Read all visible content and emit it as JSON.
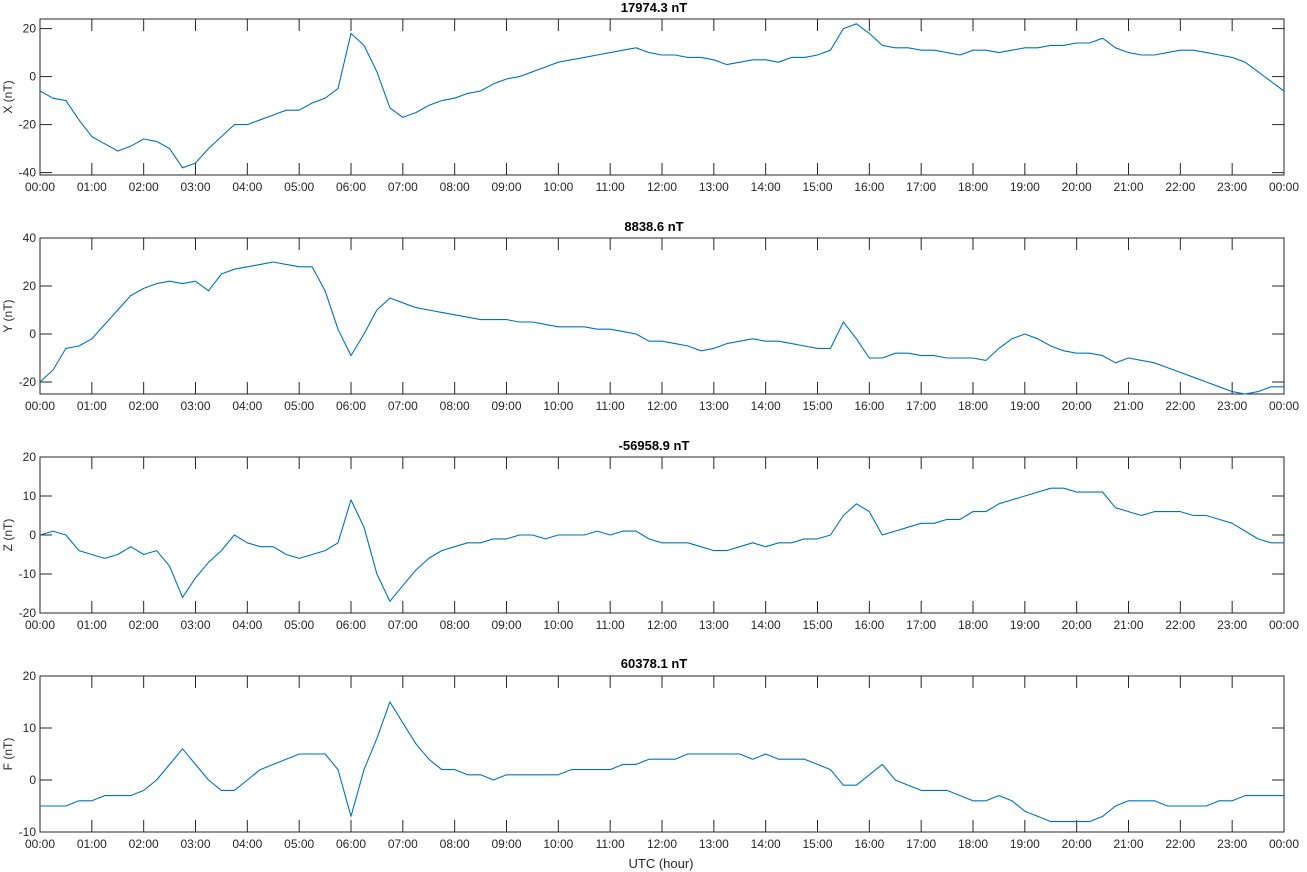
{
  "figure": {
    "xlabel": "UTC (hour)",
    "x_tick_labels": [
      "00:00",
      "01:00",
      "02:00",
      "03:00",
      "04:00",
      "05:00",
      "06:00",
      "07:00",
      "08:00",
      "09:00",
      "10:00",
      "11:00",
      "12:00",
      "13:00",
      "14:00",
      "15:00",
      "16:00",
      "17:00",
      "18:00",
      "19:00",
      "20:00",
      "21:00",
      "22:00",
      "23:00",
      "00:00"
    ],
    "line_color": "#0072BD"
  },
  "chart_data": [
    {
      "type": "line",
      "title": "17974.3 nT",
      "ylabel": "X (nT)",
      "xlim": [
        0,
        24
      ],
      "ylim": [
        -41,
        24
      ],
      "y_ticks": [
        -40,
        -20,
        0,
        20
      ],
      "series": [
        {
          "x": [
            0,
            0.25,
            0.5,
            0.75,
            1,
            1.25,
            1.5,
            1.75,
            2,
            2.25,
            2.5,
            2.75,
            3,
            3.25,
            3.5,
            3.75,
            4,
            4.25,
            4.5,
            4.75,
            5,
            5.25,
            5.5,
            5.75,
            6,
            6.25,
            6.5,
            6.75,
            7,
            7.25,
            7.5,
            7.75,
            8,
            8.25,
            8.5,
            8.75,
            9,
            9.25,
            9.5,
            9.75,
            10,
            10.25,
            10.5,
            10.75,
            11,
            11.25,
            11.5,
            11.75,
            12,
            12.25,
            12.5,
            12.75,
            13,
            13.25,
            13.5,
            13.75,
            14,
            14.25,
            14.5,
            14.75,
            15,
            15.25,
            15.5,
            15.75,
            16,
            16.25,
            16.5,
            16.75,
            17,
            17.25,
            17.5,
            17.75,
            18,
            18.25,
            18.5,
            18.75,
            19,
            19.25,
            19.5,
            19.75,
            20,
            20.25,
            20.5,
            20.75,
            21,
            21.25,
            21.5,
            21.75,
            22,
            22.25,
            22.5,
            22.75,
            23,
            23.25,
            23.5,
            23.75,
            24
          ],
          "values": [
            -6,
            -9,
            -10,
            -18,
            -25,
            -28,
            -31,
            -29,
            -26,
            -27,
            -30,
            -38,
            -36,
            -30,
            -25,
            -20,
            -20,
            -18,
            -16,
            -14,
            -14,
            -11,
            -9,
            -5,
            18,
            13,
            2,
            -13,
            -17,
            -15,
            -12,
            -10,
            -9,
            -7,
            -6,
            -3,
            -1,
            0,
            2,
            4,
            6,
            7,
            8,
            9,
            10,
            11,
            12,
            10,
            9,
            9,
            8,
            8,
            7,
            5,
            6,
            7,
            7,
            6,
            8,
            8,
            9,
            11,
            20,
            22,
            18,
            13,
            12,
            12,
            11,
            11,
            10,
            9,
            11,
            11,
            10,
            11,
            12,
            12,
            13,
            13,
            14,
            14,
            16,
            12,
            10,
            9,
            9,
            10,
            11,
            11,
            10,
            9,
            8,
            6,
            2,
            -2,
            -6
          ]
        }
      ]
    },
    {
      "type": "line",
      "title": "8838.6 nT",
      "ylabel": "Y (nT)",
      "xlim": [
        0,
        24
      ],
      "ylim": [
        -25,
        40
      ],
      "y_ticks": [
        -20,
        0,
        20,
        40
      ],
      "series": [
        {
          "x": [
            0,
            0.25,
            0.5,
            0.75,
            1,
            1.25,
            1.5,
            1.75,
            2,
            2.25,
            2.5,
            2.75,
            3,
            3.25,
            3.5,
            3.75,
            4,
            4.25,
            4.5,
            4.75,
            5,
            5.25,
            5.5,
            5.75,
            6,
            6.25,
            6.5,
            6.75,
            7,
            7.25,
            7.5,
            7.75,
            8,
            8.25,
            8.5,
            8.75,
            9,
            9.25,
            9.5,
            9.75,
            10,
            10.25,
            10.5,
            10.75,
            11,
            11.25,
            11.5,
            11.75,
            12,
            12.25,
            12.5,
            12.75,
            13,
            13.25,
            13.5,
            13.75,
            14,
            14.25,
            14.5,
            14.75,
            15,
            15.25,
            15.5,
            15.75,
            16,
            16.25,
            16.5,
            16.75,
            17,
            17.25,
            17.5,
            17.75,
            18,
            18.25,
            18.5,
            18.75,
            19,
            19.25,
            19.5,
            19.75,
            20,
            20.25,
            20.5,
            20.75,
            21,
            21.25,
            21.5,
            21.75,
            22,
            22.25,
            22.5,
            22.75,
            23,
            23.25,
            23.5,
            23.75,
            24
          ],
          "values": [
            -20,
            -15,
            -6,
            -5,
            -2,
            4,
            10,
            16,
            19,
            21,
            22,
            21,
            22,
            18,
            25,
            27,
            28,
            29,
            30,
            29,
            28,
            28,
            18,
            2,
            -9,
            0,
            10,
            15,
            13,
            11,
            10,
            9,
            8,
            7,
            6,
            6,
            6,
            5,
            5,
            4,
            3,
            3,
            3,
            2,
            2,
            1,
            0,
            -3,
            -3,
            -4,
            -5,
            -7,
            -6,
            -4,
            -3,
            -2,
            -3,
            -3,
            -4,
            -5,
            -6,
            -6,
            5,
            -2,
            -10,
            -10,
            -8,
            -8,
            -9,
            -9,
            -10,
            -10,
            -10,
            -11,
            -6,
            -2,
            0,
            -2,
            -5,
            -7,
            -8,
            -8,
            -9,
            -12,
            -10,
            -11,
            -12,
            -14,
            -16,
            -18,
            -20,
            -22,
            -24,
            -25,
            -24,
            -22,
            -22
          ]
        }
      ]
    },
    {
      "type": "line",
      "title": "-56958.9 nT",
      "ylabel": "Z (nT)",
      "xlim": [
        0,
        24
      ],
      "ylim": [
        -20,
        20
      ],
      "y_ticks": [
        -20,
        -10,
        0,
        10,
        20
      ],
      "series": [
        {
          "x": [
            0,
            0.25,
            0.5,
            0.75,
            1,
            1.25,
            1.5,
            1.75,
            2,
            2.25,
            2.5,
            2.75,
            3,
            3.25,
            3.5,
            3.75,
            4,
            4.25,
            4.5,
            4.75,
            5,
            5.25,
            5.5,
            5.75,
            6,
            6.25,
            6.5,
            6.75,
            7,
            7.25,
            7.5,
            7.75,
            8,
            8.25,
            8.5,
            8.75,
            9,
            9.25,
            9.5,
            9.75,
            10,
            10.25,
            10.5,
            10.75,
            11,
            11.25,
            11.5,
            11.75,
            12,
            12.25,
            12.5,
            12.75,
            13,
            13.25,
            13.5,
            13.75,
            14,
            14.25,
            14.5,
            14.75,
            15,
            15.25,
            15.5,
            15.75,
            16,
            16.25,
            16.5,
            16.75,
            17,
            17.25,
            17.5,
            17.75,
            18,
            18.25,
            18.5,
            18.75,
            19,
            19.25,
            19.5,
            19.75,
            20,
            20.25,
            20.5,
            20.75,
            21,
            21.25,
            21.5,
            21.75,
            22,
            22.25,
            22.5,
            22.75,
            23,
            23.25,
            23.5,
            23.75,
            24
          ],
          "values": [
            0,
            1,
            0,
            -4,
            -5,
            -6,
            -5,
            -3,
            -5,
            -4,
            -8,
            -16,
            -11,
            -7,
            -4,
            0,
            -2,
            -3,
            -3,
            -5,
            -6,
            -5,
            -4,
            -2,
            9,
            2,
            -10,
            -17,
            -13,
            -9,
            -6,
            -4,
            -3,
            -2,
            -2,
            -1,
            -1,
            0,
            0,
            -1,
            0,
            0,
            0,
            1,
            0,
            1,
            1,
            -1,
            -2,
            -2,
            -2,
            -3,
            -4,
            -4,
            -3,
            -2,
            -3,
            -2,
            -2,
            -1,
            -1,
            0,
            5,
            8,
            6,
            0,
            1,
            2,
            3,
            3,
            4,
            4,
            6,
            6,
            8,
            9,
            10,
            11,
            12,
            12,
            11,
            11,
            11,
            7,
            6,
            5,
            6,
            6,
            6,
            5,
            5,
            4,
            3,
            1,
            -1,
            -2,
            -2
          ]
        }
      ]
    },
    {
      "type": "line",
      "title": "60378.1 nT",
      "ylabel": "F (nT)",
      "xlim": [
        0,
        24
      ],
      "ylim": [
        -10,
        20
      ],
      "y_ticks": [
        -10,
        0,
        10,
        20
      ],
      "series": [
        {
          "x": [
            0,
            0.25,
            0.5,
            0.75,
            1,
            1.25,
            1.5,
            1.75,
            2,
            2.25,
            2.5,
            2.75,
            3,
            3.25,
            3.5,
            3.75,
            4,
            4.25,
            4.5,
            4.75,
            5,
            5.25,
            5.5,
            5.75,
            6,
            6.25,
            6.5,
            6.75,
            7,
            7.25,
            7.5,
            7.75,
            8,
            8.25,
            8.5,
            8.75,
            9,
            9.25,
            9.5,
            9.75,
            10,
            10.25,
            10.5,
            10.75,
            11,
            11.25,
            11.5,
            11.75,
            12,
            12.25,
            12.5,
            12.75,
            13,
            13.25,
            13.5,
            13.75,
            14,
            14.25,
            14.5,
            14.75,
            15,
            15.25,
            15.5,
            15.75,
            16,
            16.25,
            16.5,
            16.75,
            17,
            17.25,
            17.5,
            17.75,
            18,
            18.25,
            18.5,
            18.75,
            19,
            19.25,
            19.5,
            19.75,
            20,
            20.25,
            20.5,
            20.75,
            21,
            21.25,
            21.5,
            21.75,
            22,
            22.25,
            22.5,
            22.75,
            23,
            23.25,
            23.5,
            23.75,
            24
          ],
          "values": [
            -5,
            -5,
            -5,
            -4,
            -4,
            -3,
            -3,
            -3,
            -2,
            0,
            3,
            6,
            3,
            0,
            -2,
            -2,
            0,
            2,
            3,
            4,
            5,
            5,
            5,
            2,
            -7,
            2,
            8,
            15,
            11,
            7,
            4,
            2,
            2,
            1,
            1,
            0,
            1,
            1,
            1,
            1,
            1,
            2,
            2,
            2,
            2,
            3,
            3,
            4,
            4,
            4,
            5,
            5,
            5,
            5,
            5,
            4,
            5,
            4,
            4,
            4,
            3,
            2,
            -1,
            -1,
            1,
            3,
            0,
            -1,
            -2,
            -2,
            -2,
            -3,
            -4,
            -4,
            -3,
            -4,
            -6,
            -7,
            -8,
            -8,
            -8,
            -8,
            -7,
            -5,
            -4,
            -4,
            -4,
            -5,
            -5,
            -5,
            -5,
            -4,
            -4,
            -3,
            -3,
            -3,
            -3
          ]
        }
      ]
    }
  ]
}
